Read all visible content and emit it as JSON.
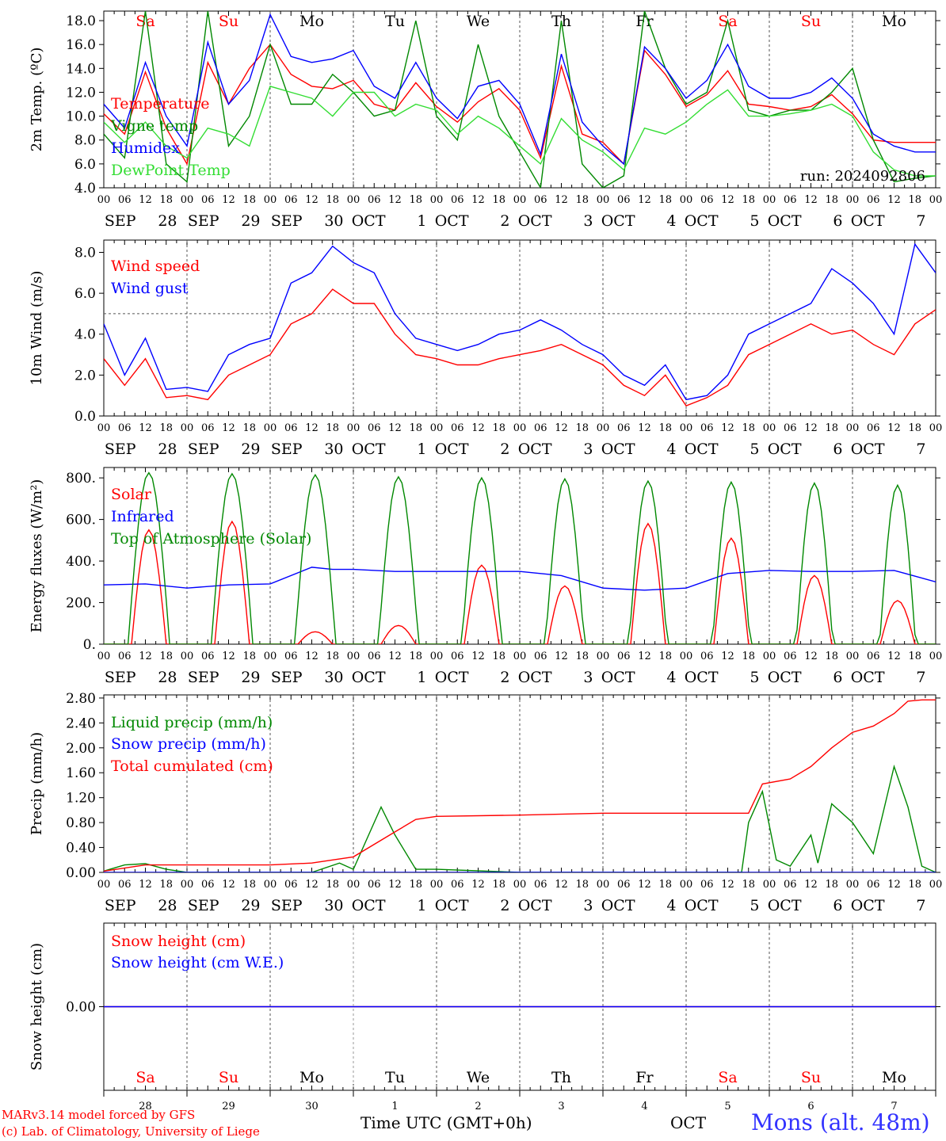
{
  "run_label": "run: 2024092806",
  "footer": {
    "credit_line1": "MARv3.14 model forced by GFS",
    "credit_line2": "(c) Lab. of Climatology, University of Liege",
    "time_axis_label": "Time UTC (GMT+0h)",
    "month_label": "OCT",
    "station": "Mons (alt. 48m)"
  },
  "time_axis": {
    "hour_ticks": [
      "00",
      "06",
      "12",
      "18"
    ],
    "day_labels": [
      [
        "SEP",
        "28"
      ],
      [
        "SEP",
        "29"
      ],
      [
        "SEP",
        "30"
      ],
      [
        "OCT",
        "1"
      ],
      [
        "OCT",
        "2"
      ],
      [
        "OCT",
        "3"
      ],
      [
        "OCT",
        "4"
      ],
      [
        "OCT",
        "5"
      ],
      [
        "OCT",
        "6"
      ],
      [
        "OCT",
        "7"
      ]
    ],
    "weekdays": [
      "Sa",
      "Su",
      "Mo",
      "Tu",
      "We",
      "Th",
      "Fr",
      "Sa",
      "Su",
      "Mo"
    ],
    "weekend_indices": [
      0,
      1,
      7,
      8
    ],
    "day_numbers": [
      "28",
      "29",
      "30",
      "1",
      "2",
      "3",
      "4",
      "5",
      "6",
      "7"
    ]
  },
  "colors": {
    "red": "#ff0000",
    "blue": "#0000ff",
    "green": "#008800",
    "lightgreen": "#33dd33",
    "purple": "#800080",
    "grid": "#555555"
  },
  "chart_data": [
    {
      "type": "line",
      "ylabel": "2m Temp. (ºC)",
      "ylim": [
        4.0,
        18.8
      ],
      "yticks": [
        "4.0",
        "6.0",
        "8.0",
        "10.0",
        "12.0",
        "14.0",
        "16.0",
        "18.0"
      ],
      "x_unit": "hours since SEP 28 00 UTC",
      "series": [
        {
          "name": "Temperature",
          "color": "red",
          "x": [
            0,
            6,
            12,
            18,
            24,
            30,
            36,
            42,
            48,
            54,
            60,
            66,
            72,
            78,
            84,
            90,
            96,
            102,
            108,
            114,
            120,
            126,
            132,
            138,
            144,
            150,
            156,
            162,
            168,
            174,
            180,
            186,
            192,
            198,
            204,
            210,
            216,
            222,
            228,
            234,
            240
          ],
          "y": [
            10.2,
            8.5,
            13.7,
            9.0,
            6.0,
            14.5,
            11.0,
            14.0,
            16.0,
            13.5,
            12.5,
            12.3,
            13.0,
            11.0,
            10.5,
            12.8,
            10.8,
            9.5,
            11.2,
            12.3,
            10.5,
            6.5,
            14.2,
            8.5,
            7.8,
            6.0,
            15.5,
            13.5,
            10.8,
            11.8,
            13.8,
            11.0,
            10.8,
            10.5,
            10.8,
            11.8,
            10.2,
            8.0,
            7.8,
            7.8,
            7.8
          ]
        },
        {
          "name": "Vigne temp",
          "color": "green",
          "x": [
            0,
            6,
            12,
            18,
            24,
            30,
            36,
            42,
            48,
            54,
            60,
            66,
            72,
            78,
            84,
            90,
            96,
            102,
            108,
            114,
            120,
            126,
            132,
            138,
            144,
            150,
            156,
            162,
            168,
            174,
            180,
            186,
            192,
            198,
            204,
            210,
            216,
            222,
            228,
            234,
            240
          ],
          "y": [
            8.5,
            6.5,
            18.8,
            6.0,
            4.5,
            18.8,
            7.5,
            10.0,
            16.0,
            11.0,
            11.0,
            13.5,
            12.0,
            10.0,
            10.5,
            18.0,
            10.0,
            8.0,
            16.0,
            10.0,
            7.0,
            4.0,
            18.0,
            6.0,
            4.0,
            5.0,
            18.8,
            14.0,
            11.0,
            12.0,
            18.0,
            10.5,
            10.0,
            10.5,
            10.5,
            12.0,
            14.0,
            8.0,
            4.5,
            4.8,
            5.0
          ]
        },
        {
          "name": "Humidex",
          "color": "blue",
          "x": [
            0,
            6,
            12,
            18,
            24,
            30,
            36,
            42,
            48,
            54,
            60,
            66,
            72,
            78,
            84,
            90,
            96,
            102,
            108,
            114,
            120,
            126,
            132,
            138,
            144,
            150,
            156,
            162,
            168,
            174,
            180,
            186,
            192,
            198,
            204,
            210,
            216,
            222,
            228,
            234,
            240
          ],
          "y": [
            11.0,
            9.0,
            14.5,
            10.0,
            7.5,
            16.2,
            11.0,
            13.0,
            18.5,
            15.0,
            14.5,
            14.8,
            15.5,
            12.5,
            11.5,
            14.5,
            11.5,
            9.8,
            12.5,
            13.0,
            11.0,
            6.8,
            15.2,
            9.5,
            7.5,
            6.0,
            15.8,
            14.0,
            11.5,
            13.0,
            16.0,
            12.5,
            11.5,
            11.5,
            12.0,
            13.2,
            11.5,
            8.5,
            7.5,
            7.0,
            7.0
          ]
        },
        {
          "name": "DewPoint Temp",
          "color": "lightgreen",
          "x": [
            0,
            6,
            12,
            18,
            24,
            30,
            36,
            42,
            48,
            54,
            60,
            66,
            72,
            78,
            84,
            90,
            96,
            102,
            108,
            114,
            120,
            126,
            132,
            138,
            144,
            150,
            156,
            162,
            168,
            174,
            180,
            186,
            192,
            198,
            204,
            210,
            216,
            222,
            228,
            234,
            240
          ],
          "y": [
            9.5,
            7.8,
            9.5,
            7.5,
            6.5,
            9.0,
            8.5,
            7.5,
            12.5,
            12.0,
            11.5,
            10.0,
            12.0,
            12.0,
            10.0,
            11.0,
            10.5,
            8.5,
            10.0,
            9.0,
            7.5,
            6.0,
            9.8,
            8.0,
            7.0,
            5.5,
            9.0,
            8.5,
            9.5,
            11.0,
            12.2,
            10.0,
            10.0,
            10.2,
            10.5,
            11.0,
            10.0,
            7.0,
            5.5,
            5.0,
            5.0
          ]
        }
      ],
      "annotation": "run: 2024092806"
    },
    {
      "type": "line",
      "ylabel": "10m Wind (m/s)",
      "ylim": [
        0.0,
        8.6
      ],
      "yticks": [
        "0.0",
        "2.0",
        "4.0",
        "6.0",
        "8.0"
      ],
      "reference_line": 5.0,
      "series": [
        {
          "name": "Wind speed",
          "color": "red",
          "x": [
            0,
            6,
            12,
            18,
            24,
            30,
            36,
            42,
            48,
            54,
            60,
            66,
            72,
            78,
            84,
            90,
            96,
            102,
            108,
            114,
            120,
            126,
            132,
            138,
            144,
            150,
            156,
            162,
            168,
            174,
            180,
            186,
            192,
            198,
            204,
            210,
            216,
            222,
            228,
            234,
            240
          ],
          "y": [
            2.8,
            1.5,
            2.8,
            0.9,
            1.0,
            0.8,
            2.0,
            2.5,
            3.0,
            4.5,
            5.0,
            6.2,
            5.5,
            5.5,
            4.0,
            3.0,
            2.8,
            2.5,
            2.5,
            2.8,
            3.0,
            3.2,
            3.5,
            3.0,
            2.5,
            1.5,
            1.0,
            2.0,
            0.5,
            0.9,
            1.5,
            3.0,
            3.5,
            4.0,
            4.5,
            4.0,
            4.2,
            3.5,
            3.0,
            4.5,
            5.2
          ]
        },
        {
          "name": "Wind gust",
          "color": "blue",
          "x": [
            0,
            6,
            12,
            18,
            24,
            30,
            36,
            42,
            48,
            54,
            60,
            66,
            72,
            78,
            84,
            90,
            96,
            102,
            108,
            114,
            120,
            126,
            132,
            138,
            144,
            150,
            156,
            162,
            168,
            174,
            180,
            186,
            192,
            198,
            204,
            210,
            216,
            222,
            228,
            234,
            240
          ],
          "y": [
            4.5,
            2.0,
            3.8,
            1.3,
            1.4,
            1.2,
            3.0,
            3.5,
            3.8,
            6.5,
            7.0,
            8.3,
            7.5,
            7.0,
            5.0,
            3.8,
            3.5,
            3.2,
            3.5,
            4.0,
            4.2,
            4.7,
            4.2,
            3.5,
            3.0,
            2.0,
            1.5,
            2.5,
            0.8,
            1.0,
            2.0,
            4.0,
            4.5,
            5.0,
            5.5,
            7.2,
            6.5,
            5.5,
            4.0,
            8.4,
            7.0
          ]
        }
      ]
    },
    {
      "type": "line",
      "ylabel": "Energy fluxes (W/m²)",
      "ylim": [
        0,
        850
      ],
      "yticks": [
        "0.",
        "200.",
        "400.",
        "600.",
        "800."
      ],
      "series": [
        {
          "name": "Solar",
          "color": "red",
          "peaks_hour_of_day": 13,
          "daily_peak": [
            550,
            590,
            60,
            90,
            380,
            280,
            580,
            510,
            330,
            210
          ]
        },
        {
          "name": "Infrared",
          "color": "blue",
          "x": [
            0,
            12,
            24,
            36,
            48,
            60,
            66,
            72,
            84,
            96,
            108,
            120,
            132,
            144,
            156,
            168,
            180,
            192,
            204,
            216,
            228,
            240
          ],
          "y": [
            285,
            290,
            270,
            285,
            290,
            370,
            360,
            360,
            350,
            350,
            350,
            350,
            330,
            270,
            260,
            270,
            340,
            355,
            350,
            350,
            355,
            300
          ]
        },
        {
          "name": "Top of Atmosphere (Solar)",
          "color": "green",
          "peaks_hour_of_day": 13,
          "daily_peak": [
            825,
            820,
            815,
            805,
            800,
            795,
            785,
            780,
            775,
            765
          ],
          "day_length_hours": [
            12,
            12,
            11.8,
            11.6,
            11.4,
            11.2,
            11.0,
            10.8,
            10.6,
            10.4
          ]
        }
      ]
    },
    {
      "type": "line",
      "ylabel": "Precip (mm/h)",
      "ylim": [
        0.0,
        2.85
      ],
      "yticks": [
        "0.00",
        "0.40",
        "0.80",
        "1.20",
        "1.60",
        "2.00",
        "2.40",
        "2.80"
      ],
      "series": [
        {
          "name": "Liquid precip (mm/h)",
          "color": "green",
          "x": [
            0,
            6,
            12,
            18,
            24,
            60,
            68,
            72,
            80,
            84,
            90,
            96,
            120,
            184,
            186,
            190,
            194,
            198,
            204,
            206,
            210,
            216,
            222,
            228,
            232,
            236,
            240
          ],
          "y": [
            0.02,
            0.12,
            0.14,
            0.05,
            0.0,
            0.0,
            0.15,
            0.05,
            1.05,
            0.6,
            0.05,
            0.05,
            0.0,
            0.0,
            0.8,
            1.3,
            0.2,
            0.1,
            0.6,
            0.15,
            1.1,
            0.8,
            0.3,
            1.7,
            1.05,
            0.1,
            0.0
          ]
        },
        {
          "name": "Snow precip (mm/h)",
          "color": "blue",
          "x": [
            0,
            240
          ],
          "y": [
            0.0,
            0.0
          ]
        },
        {
          "name": "Total cumulated (cm)",
          "color": "red",
          "x": [
            0,
            12,
            24,
            48,
            60,
            72,
            84,
            90,
            96,
            120,
            144,
            168,
            186,
            190,
            198,
            204,
            210,
            216,
            222,
            228,
            232,
            236,
            240
          ],
          "y": [
            0.02,
            0.12,
            0.12,
            0.12,
            0.15,
            0.25,
            0.65,
            0.85,
            0.9,
            0.92,
            0.95,
            0.95,
            0.95,
            1.42,
            1.5,
            1.7,
            2.0,
            2.25,
            2.35,
            2.55,
            2.75,
            2.77,
            2.77
          ]
        }
      ]
    },
    {
      "type": "line",
      "ylabel": "Snow height (cm)",
      "ylim": [
        -1,
        1
      ],
      "yticks": [
        "0.00"
      ],
      "series": [
        {
          "name": "Snow height (cm)",
          "color": "red",
          "x": [
            0,
            240
          ],
          "y": [
            0.0,
            0.0
          ]
        },
        {
          "name": "Snow height (cm W.E.)",
          "color": "blue",
          "x": [
            0,
            240
          ],
          "y": [
            0.0,
            0.0
          ]
        }
      ]
    }
  ]
}
